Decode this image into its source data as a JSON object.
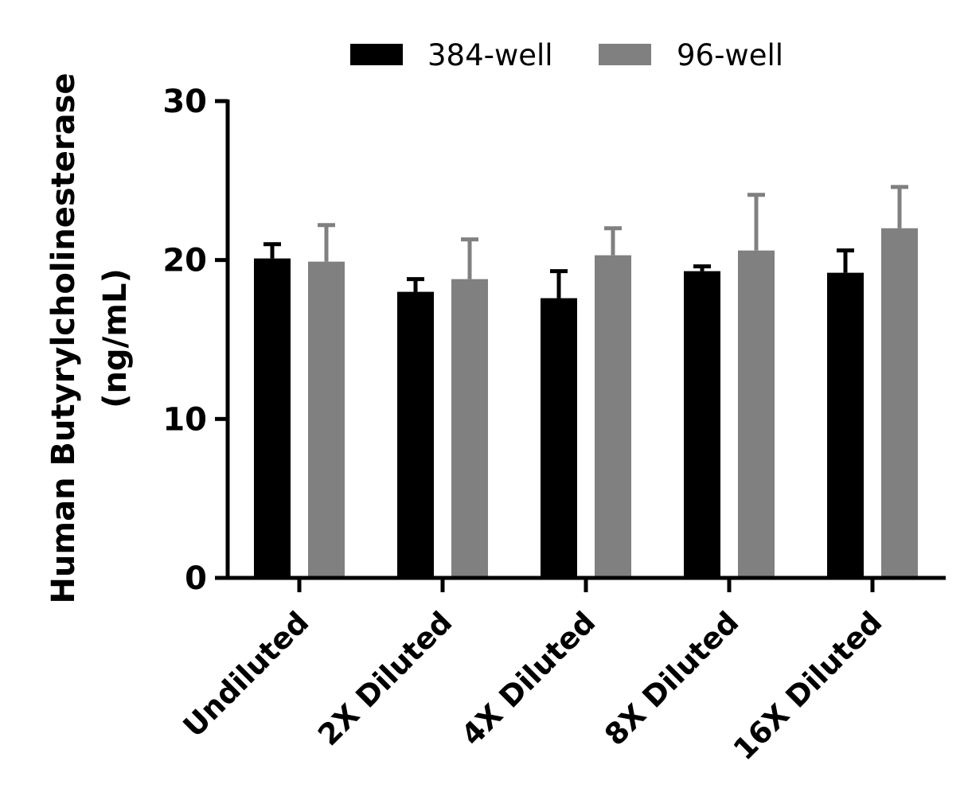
{
  "chart_data": {
    "type": "bar",
    "categories": [
      "Undiluted",
      "2X Diluted",
      "4X Diluted",
      "8X Diluted",
      "16X Diluted"
    ],
    "series": [
      {
        "name": "384-well",
        "color": "#000000",
        "values": [
          20.1,
          18.0,
          17.6,
          19.3,
          19.2
        ],
        "error_upper": [
          21.0,
          18.8,
          19.3,
          19.6,
          20.6
        ]
      },
      {
        "name": "96-well",
        "color": "#808080",
        "values": [
          19.9,
          18.8,
          20.3,
          20.6,
          22.0
        ],
        "error_upper": [
          22.2,
          21.3,
          22.0,
          24.1,
          24.6
        ]
      }
    ],
    "ylabel_line1": "Human Butyrylcholinesterase",
    "ylabel_line2": "(ng/mL)",
    "ylim": [
      0,
      30
    ],
    "yticks": [
      0,
      10,
      20,
      30
    ],
    "legend_position": "top",
    "grid": false
  }
}
